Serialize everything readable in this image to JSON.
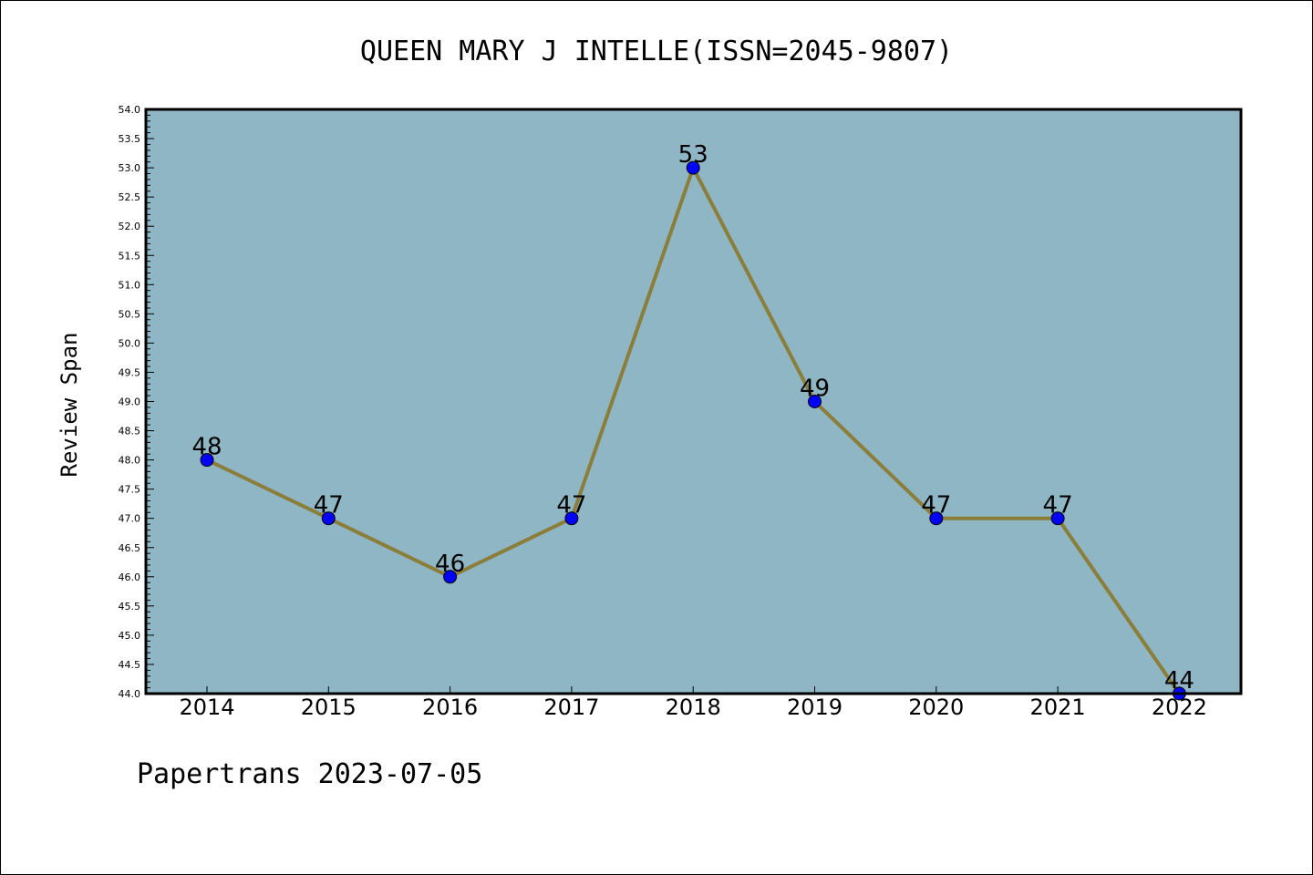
{
  "chart_data": {
    "type": "line",
    "title": "QUEEN MARY J INTELLE(ISSN=2045-9807)",
    "xlabel": "",
    "ylabel": "Review Span",
    "categories": [
      "2014",
      "2015",
      "2016",
      "2017",
      "2018",
      "2019",
      "2020",
      "2021",
      "2022"
    ],
    "series": [
      {
        "values": [
          48,
          47,
          46,
          47,
          53,
          49,
          47,
          47,
          44
        ],
        "data_labels": [
          "48",
          "47",
          "46",
          "47",
          "53",
          "49",
          "47",
          "47",
          "44"
        ]
      }
    ],
    "ylim": [
      44.0,
      54.0
    ],
    "ytick_labels": [
      "44.0",
      "44.5",
      "45.0",
      "45.5",
      "46.0",
      "46.5",
      "47.0",
      "47.5",
      "48.0",
      "48.5",
      "49.0",
      "49.5",
      "50.0",
      "50.5",
      "51.0",
      "51.5",
      "52.0",
      "52.5",
      "53.0",
      "53.5",
      "54.0"
    ],
    "grid": false,
    "legend": "none",
    "colors": {
      "plot_background": "#8fb6c4",
      "line": "#8b7d3a",
      "marker": "#0000ff",
      "axes": "#000000"
    }
  },
  "footer": {
    "text": "Papertrans 2023-07-05"
  }
}
